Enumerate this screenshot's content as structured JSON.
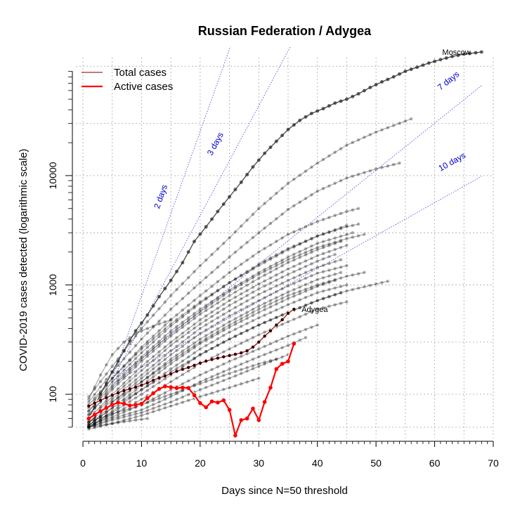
{
  "chart_data": {
    "type": "line",
    "title": "Russian Federation / Adygea",
    "xlabel": "Days since N=50 threshold",
    "ylabel": "COVID-2019 cases detected (logarithmic scale)",
    "xlim": [
      0,
      70
    ],
    "ylim": [
      40,
      120000
    ],
    "y_scale": "log",
    "grid": true,
    "legend_position": "top-left",
    "x_ticks": [
      0,
      10,
      20,
      30,
      40,
      50,
      60,
      70
    ],
    "y_ticks": [
      100,
      1000,
      10000
    ],
    "legend": [
      {
        "label": "Total cases",
        "color": "#a52a2a"
      },
      {
        "label": "Active cases",
        "color": "#ff0000"
      }
    ],
    "doubling_lines": [
      {
        "label": "2 days",
        "days": 2
      },
      {
        "label": "3 days",
        "days": 3
      },
      {
        "label": "7 days",
        "days": 7
      },
      {
        "label": "10 days",
        "days": 10
      }
    ],
    "highlight_labels": {
      "moscow": "Moscow",
      "adygea": "Adygea"
    },
    "series": [
      {
        "region": "Moscow",
        "x": [
          1,
          3,
          5,
          7,
          9,
          11,
          13,
          15,
          17,
          19,
          21,
          23,
          25,
          27,
          29,
          31,
          33,
          35,
          37,
          39,
          41,
          43,
          45,
          47,
          49,
          51,
          53,
          55,
          57,
          59,
          61,
          63,
          65,
          68
        ],
        "y": [
          60,
          100,
          160,
          250,
          380,
          530,
          780,
          1100,
          1600,
          2500,
          3400,
          4700,
          6400,
          8700,
          12000,
          16000,
          20600,
          26400,
          32000,
          37000,
          41000,
          46000,
          50000,
          56000,
          64000,
          72000,
          80000,
          90000,
          98000,
          107000,
          115000,
          123000,
          129000,
          135000
        ]
      },
      {
        "region": "Adygea",
        "kind": "total",
        "x": [
          1,
          2,
          3,
          4,
          5,
          6,
          7,
          8,
          9,
          10,
          11,
          12,
          13,
          14,
          15,
          16,
          17,
          18,
          19,
          20,
          21,
          22,
          23,
          24,
          25,
          26,
          27,
          28,
          29,
          30,
          31,
          32,
          33,
          34,
          35,
          36
        ],
        "y": [
          78,
          83,
          88,
          93,
          98,
          103,
          108,
          112,
          116,
          121,
          127,
          134,
          141,
          147,
          154,
          162,
          169,
          176,
          184,
          193,
          201,
          208,
          214,
          220,
          226,
          232,
          239,
          250,
          270,
          300,
          340,
          380,
          430,
          480,
          550,
          600
        ]
      },
      {
        "region": "Adygea",
        "kind": "active",
        "x": [
          1,
          2,
          3,
          4,
          5,
          6,
          7,
          8,
          9,
          10,
          11,
          12,
          13,
          14,
          15,
          16,
          17,
          18,
          19,
          20,
          21,
          22,
          23,
          24,
          25,
          26,
          27,
          28,
          29,
          30,
          31,
          32,
          33,
          34,
          35,
          36
        ],
        "y": [
          60,
          65,
          70,
          75,
          80,
          84,
          82,
          79,
          80,
          82,
          92,
          102,
          112,
          118,
          116,
          114,
          115,
          114,
          98,
          83,
          76,
          86,
          84,
          88,
          72,
          42,
          58,
          60,
          74,
          58,
          85,
          115,
          170,
          190,
          200,
          290
        ]
      },
      {
        "region": "Other",
        "x": [
          1,
          5,
          10,
          15,
          20,
          25,
          30,
          35,
          40,
          45
        ],
        "y": [
          80,
          140,
          260,
          440,
          700,
          1050,
          1500,
          2100,
          2800,
          3500
        ]
      },
      {
        "region": "Other",
        "x": [
          1,
          5,
          10,
          15,
          20,
          25,
          30,
          35,
          40,
          46
        ],
        "y": [
          70,
          120,
          220,
          380,
          600,
          900,
          1300,
          1800,
          2400,
          3000
        ]
      },
      {
        "region": "Other",
        "x": [
          1,
          5,
          10,
          15,
          20,
          25,
          30,
          35,
          40,
          44
        ],
        "y": [
          65,
          110,
          200,
          340,
          540,
          800,
          1150,
          1600,
          2100,
          2500
        ]
      },
      {
        "region": "Other",
        "x": [
          1,
          5,
          10,
          15,
          20,
          25,
          30,
          35,
          40,
          45
        ],
        "y": [
          60,
          100,
          180,
          300,
          480,
          720,
          1020,
          1400,
          1850,
          2300
        ]
      },
      {
        "region": "Other",
        "x": [
          1,
          5,
          10,
          15,
          20,
          25,
          30,
          35,
          40,
          43
        ],
        "y": [
          58,
          95,
          165,
          280,
          440,
          650,
          920,
          1250,
          1650,
          1900
        ]
      },
      {
        "region": "Other",
        "x": [
          1,
          5,
          10,
          15,
          20,
          25,
          30,
          35,
          40,
          44
        ],
        "y": [
          55,
          90,
          150,
          250,
          400,
          580,
          820,
          1100,
          1450,
          1700
        ]
      },
      {
        "region": "Other",
        "x": [
          1,
          5,
          10,
          15,
          20,
          25,
          30,
          35,
          40,
          45
        ],
        "y": [
          55,
          85,
          140,
          230,
          360,
          520,
          720,
          980,
          1280,
          1500
        ]
      },
      {
        "region": "Other",
        "x": [
          1,
          5,
          10,
          15,
          20,
          25,
          30,
          35,
          40,
          44
        ],
        "y": [
          52,
          80,
          130,
          210,
          320,
          460,
          640,
          860,
          1120,
          1300
        ]
      },
      {
        "region": "Other",
        "x": [
          1,
          5,
          10,
          15,
          20,
          25,
          30,
          35,
          40,
          43
        ],
        "y": [
          52,
          75,
          120,
          190,
          290,
          410,
          560,
          750,
          970,
          1100
        ]
      },
      {
        "region": "Other",
        "x": [
          1,
          5,
          10,
          15,
          20,
          25,
          30,
          35,
          40,
          45
        ],
        "y": [
          50,
          70,
          110,
          170,
          260,
          370,
          500,
          660,
          850,
          1000
        ]
      },
      {
        "region": "Other",
        "x": [
          1,
          5,
          10,
          15,
          20,
          25,
          30,
          35,
          40,
          44
        ],
        "y": [
          50,
          68,
          100,
          150,
          230,
          320,
          430,
          560,
          720,
          850
        ]
      },
      {
        "region": "Other",
        "x": [
          1,
          5,
          10,
          15,
          20,
          25,
          30,
          35,
          40,
          45
        ],
        "y": [
          50,
          65,
          90,
          130,
          190,
          260,
          350,
          460,
          600,
          700
        ]
      },
      {
        "region": "Other",
        "x": [
          1,
          5,
          10,
          15,
          20,
          25,
          30,
          35,
          40
        ],
        "y": [
          52,
          62,
          80,
          110,
          150,
          200,
          260,
          340,
          430
        ]
      },
      {
        "region": "Other",
        "x": [
          1,
          5,
          10,
          15,
          20,
          25,
          30,
          35,
          38
        ],
        "y": [
          50,
          60,
          72,
          95,
          130,
          170,
          220,
          280,
          330
        ]
      },
      {
        "region": "Other",
        "x": [
          1,
          5,
          10,
          15,
          20,
          25,
          30,
          35
        ],
        "y": [
          50,
          58,
          68,
          85,
          110,
          140,
          180,
          230
        ]
      },
      {
        "region": "Other",
        "x": [
          1,
          5,
          10,
          15,
          20,
          25,
          30
        ],
        "y": [
          48,
          54,
          64,
          78,
          95,
          115,
          140
        ]
      },
      {
        "region": "Other",
        "x": [
          1,
          5,
          10,
          15,
          20,
          25,
          30,
          35,
          40,
          45,
          50,
          56
        ],
        "y": [
          95,
          180,
          400,
          800,
          1500,
          2700,
          5000,
          8500,
          13000,
          19000,
          25000,
          33000
        ]
      },
      {
        "region": "Other",
        "x": [
          1,
          5,
          10,
          15,
          20,
          25,
          30,
          35,
          40,
          45,
          50,
          54
        ],
        "y": [
          85,
          160,
          320,
          600,
          1050,
          1800,
          3000,
          4900,
          7200,
          9500,
          11500,
          13000
        ]
      },
      {
        "region": "Other",
        "x": [
          1,
          5,
          10,
          15,
          20,
          25,
          30,
          35,
          40,
          45,
          47
        ],
        "y": [
          75,
          140,
          270,
          480,
          800,
          1300,
          2000,
          2900,
          3800,
          4700,
          5000
        ]
      },
      {
        "region": "Other",
        "x": [
          1,
          5,
          10,
          15,
          20,
          25,
          30,
          35,
          40,
          45,
          47
        ],
        "y": [
          70,
          130,
          240,
          420,
          680,
          1050,
          1550,
          2150,
          2800,
          3400,
          3600
        ]
      },
      {
        "region": "Other",
        "x": [
          1,
          5,
          10,
          15,
          20,
          25,
          30,
          35,
          40,
          45,
          48
        ],
        "y": [
          65,
          115,
          210,
          360,
          570,
          870,
          1250,
          1700,
          2200,
          2650,
          2900
        ]
      },
      {
        "region": "Other",
        "x": [
          1,
          5,
          10,
          15,
          20,
          25,
          30,
          35,
          40,
          45,
          48
        ],
        "y": [
          55,
          85,
          130,
          200,
          300,
          430,
          600,
          800,
          1000,
          1200,
          1300
        ]
      },
      {
        "region": "Other",
        "x": [
          1,
          5,
          10,
          15,
          20,
          25,
          30,
          35,
          40,
          45,
          50,
          52
        ],
        "y": [
          52,
          75,
          110,
          160,
          230,
          320,
          430,
          560,
          720,
          880,
          1020,
          1080
        ]
      },
      {
        "region": "Other",
        "x": [
          1,
          3,
          5,
          7,
          9,
          12,
          15
        ],
        "y": [
          90,
          150,
          230,
          300,
          360,
          420,
          480
        ]
      },
      {
        "region": "Other",
        "x": [
          1,
          3,
          5,
          7,
          9,
          11
        ],
        "y": [
          50,
          52,
          54,
          56,
          58,
          60
        ]
      },
      {
        "region": "Other",
        "x": [
          1,
          5,
          10,
          15,
          20,
          25,
          30,
          33
        ],
        "y": [
          56,
          66,
          80,
          100,
          125,
          155,
          190,
          210
        ]
      }
    ]
  }
}
